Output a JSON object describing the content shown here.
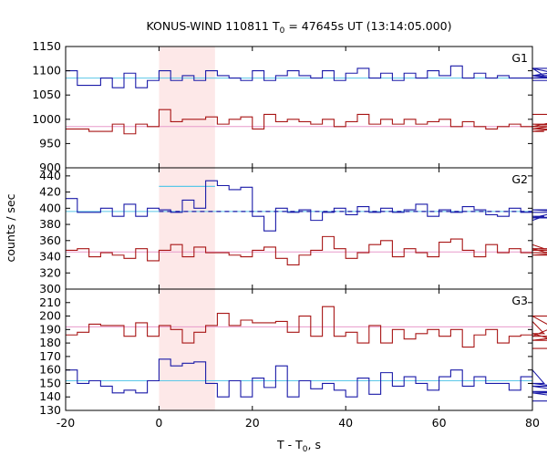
{
  "chart_data": {
    "type": "line",
    "title": {
      "prefix": "KONUS-WIND 110811 T",
      "sub": "0",
      "suffix": " = 47645s UT (13:14:05.000)"
    },
    "xlabel": {
      "prefix": "T - T",
      "sub": "0",
      "suffix": ", s"
    },
    "ylabel": "counts / sec",
    "xlim": [
      -20,
      80
    ],
    "x_ticks": [
      "-20",
      "0",
      "20",
      "40",
      "60",
      "80"
    ],
    "x_tick_values": [
      -20,
      0,
      20,
      40,
      60,
      80
    ],
    "highlight_interval": [
      0,
      12
    ],
    "colors": {
      "blue": "#1a1aa8",
      "red": "#a81515",
      "blue_bg": "#5bc8e8",
      "red_bg": "#e89acb",
      "highlight": "#fde8e8"
    },
    "bin_width": 2.5,
    "panels": [
      {
        "label": "G1",
        "ylim": [
          900,
          1150
        ],
        "y_ticks": [
          900,
          950,
          1000,
          1050,
          1100,
          1150
        ],
        "series": [
          {
            "color": "blue",
            "x_start": -20,
            "bin": 2.5,
            "values": [
              1100,
              1070,
              1070,
              1085,
              1065,
              1095,
              1065,
              1080,
              1100,
              1080,
              1090,
              1080,
              1100,
              1090,
              1085,
              1080,
              1100,
              1080,
              1090,
              1100,
              1090,
              1085,
              1100,
              1080,
              1095,
              1105,
              1085,
              1095,
              1080,
              1095,
              1085,
              1100,
              1090,
              1110,
              1085,
              1095,
              1085,
              1090,
              1085,
              1085,
              1105,
              1090,
              1085,
              1090,
              1105,
              1080
            ]
          },
          {
            "color": "red",
            "x_start": -20,
            "bin": 2.5,
            "values": [
              980,
              980,
              975,
              975,
              990,
              970,
              990,
              985,
              1020,
              995,
              1000,
              1000,
              1005,
              990,
              1000,
              1005,
              980,
              1010,
              995,
              1000,
              995,
              990,
              1000,
              985,
              995,
              1010,
              990,
              1000,
              990,
              1000,
              990,
              995,
              1000,
              985,
              995,
              985,
              980,
              985,
              990,
              985,
              975,
              975,
              980,
              990,
              985,
              1010
            ]
          }
        ],
        "backgrounds": [
          {
            "color": "blue_bg",
            "value": 1085
          },
          {
            "color": "red_bg",
            "value": 985
          }
        ],
        "excess_segments": []
      },
      {
        "label": "G2",
        "ylim": [
          300,
          450
        ],
        "y_ticks": [
          300,
          320,
          340,
          360,
          380,
          400,
          420,
          440
        ],
        "series": [
          {
            "color": "blue",
            "x_start": -20,
            "bin": 2.5,
            "values": [
              412,
              395,
              395,
              400,
              390,
              405,
              390,
              400,
              398,
              395,
              410,
              400,
              434,
              428,
              423,
              426,
              390,
              372,
              400,
              395,
              398,
              385,
              395,
              400,
              392,
              402,
              395,
              400,
              395,
              398,
              405,
              390,
              398,
              395,
              402,
              398,
              392,
              390,
              400,
              395,
              385,
              390,
              388,
              398,
              395,
              395
            ]
          },
          {
            "color": "red",
            "x_start": -20,
            "bin": 2.5,
            "values": [
              348,
              350,
              340,
              345,
              342,
              338,
              350,
              335,
              348,
              355,
              340,
              352,
              345,
              345,
              342,
              340,
              348,
              352,
              338,
              330,
              342,
              348,
              365,
              350,
              338,
              345,
              355,
              360,
              340,
              350,
              345,
              340,
              358,
              362,
              348,
              340,
              355,
              345,
              350,
              345,
              355,
              350,
              342,
              345,
              348,
              350
            ]
          }
        ],
        "backgrounds": [
          {
            "color": "blue_bg",
            "value": 396
          },
          {
            "color": "red_bg",
            "value": 346
          }
        ],
        "excess_segments": [
          {
            "color": "blue_bg",
            "x": [
              0,
              12
            ],
            "value": 427
          }
        ],
        "dashed_background": {
          "color": "blue",
          "x": [
            0,
            80
          ],
          "value": 396
        }
      },
      {
        "label": "G3",
        "ylim": [
          130,
          220
        ],
        "y_ticks": [
          130,
          140,
          150,
          160,
          170,
          180,
          190,
          200,
          210
        ],
        "series": [
          {
            "color": "blue",
            "x_start": -20,
            "bin": 2.5,
            "values": [
              160,
              150,
              152,
              148,
              143,
              145,
              143,
              152,
              168,
              163,
              165,
              166,
              150,
              140,
              152,
              140,
              154,
              147,
              163,
              140,
              152,
              146,
              150,
              145,
              140,
              154,
              142,
              158,
              148,
              155,
              150,
              145,
              155,
              160,
              148,
              155,
              150,
              150,
              145,
              155,
              160,
              150,
              148,
              144,
              143,
              137
            ]
          },
          {
            "color": "red",
            "x_start": -20,
            "bin": 2.5,
            "values": [
              186,
              188,
              194,
              193,
              193,
              185,
              195,
              185,
              193,
              190,
              180,
              188,
              193,
              202,
              193,
              197,
              195,
              195,
              196,
              188,
              200,
              185,
              207,
              185,
              188,
              180,
              193,
              180,
              190,
              183,
              187,
              190,
              185,
              190,
              177,
              186,
              190,
              180,
              185,
              186,
              196,
              187,
              182,
              185,
              200,
              176
            ]
          }
        ],
        "backgrounds": [
          {
            "color": "blue_bg",
            "value": 152
          },
          {
            "color": "red_bg",
            "value": 192
          }
        ],
        "excess_segments": []
      }
    ]
  }
}
